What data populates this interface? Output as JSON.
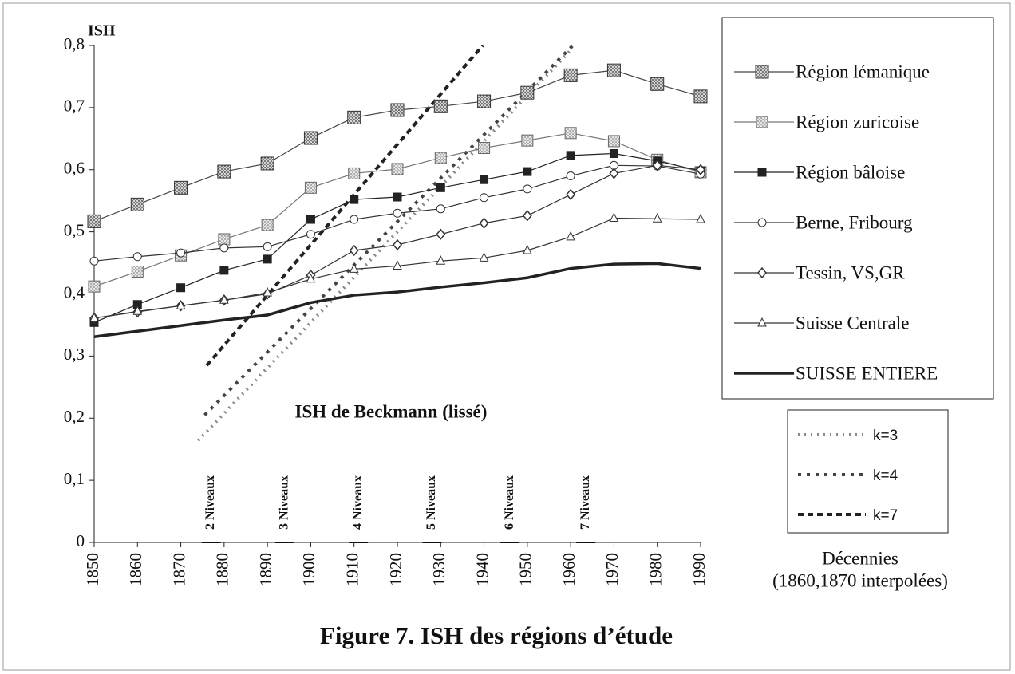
{
  "chart_data": {
    "type": "line",
    "title": "Figure 7. ISH des régions d’étude",
    "y_label": "ISH",
    "annotation": "ISH de Beckmann (lissé)",
    "x_label": [
      "Décennies",
      "(1860,1870 interpolées)"
    ],
    "x": [
      1850,
      1860,
      1870,
      1880,
      1890,
      1900,
      1910,
      1920,
      1930,
      1940,
      1950,
      1960,
      1970,
      1980,
      1990
    ],
    "xlim": [
      1850,
      1990
    ],
    "xticks": [
      1850,
      1860,
      1870,
      1880,
      1890,
      1900,
      1910,
      1920,
      1930,
      1940,
      1950,
      1960,
      1970,
      1980,
      1990
    ],
    "ylim": [
      0,
      0.8
    ],
    "yticks": [
      0,
      {
        "value": 0.1,
        "label": "0,1"
      },
      {
        "value": 0.2,
        "label": "0,2"
      },
      {
        "value": 0.3,
        "label": "0,3"
      },
      {
        "value": 0.4,
        "label": "0,4"
      },
      {
        "value": 0.5,
        "label": "0,5"
      },
      {
        "value": 0.6,
        "label": "0,6"
      },
      {
        "value": 0.7,
        "label": "0,7"
      },
      {
        "value": 0.8,
        "label": "0,8"
      }
    ],
    "series": [
      {
        "name": "Région lémanique",
        "color": "#444444",
        "marker": "hatched-square-dark",
        "values": [
          0.517,
          0.544,
          0.571,
          0.597,
          0.61,
          0.651,
          0.684,
          0.696,
          0.702,
          0.71,
          0.724,
          0.752,
          0.76,
          0.738,
          0.718
        ]
      },
      {
        "name": "Région zuricoise",
        "color": "#777777",
        "marker": "hatched-square-light",
        "values": [
          0.412,
          0.436,
          0.462,
          0.488,
          0.511,
          0.571,
          0.594,
          0.601,
          0.619,
          0.635,
          0.647,
          0.659,
          0.646,
          0.616,
          0.596
        ]
      },
      {
        "name": "Région bâloise",
        "color": "#222222",
        "marker": "square",
        "values": [
          0.354,
          0.383,
          0.41,
          0.438,
          0.456,
          0.52,
          0.552,
          0.556,
          0.571,
          0.584,
          0.597,
          0.623,
          0.626,
          0.614,
          0.598
        ]
      },
      {
        "name": "Berne, Fribourg",
        "color": "#333333",
        "marker": "circle",
        "values": [
          0.453,
          0.46,
          0.466,
          0.474,
          0.476,
          0.496,
          0.52,
          0.53,
          0.537,
          0.555,
          0.569,
          0.59,
          0.607,
          0.606,
          0.593
        ]
      },
      {
        "name": "Tessin, VS,GR",
        "color": "#333333",
        "marker": "diamond",
        "values": [
          0.361,
          0.371,
          0.381,
          0.39,
          0.4,
          0.43,
          0.47,
          0.479,
          0.496,
          0.514,
          0.526,
          0.56,
          0.594,
          0.607,
          0.6
        ]
      },
      {
        "name": "Suisse Centrale",
        "color": "#333333",
        "marker": "triangle",
        "values": [
          0.361,
          0.372,
          0.381,
          0.39,
          0.402,
          0.424,
          0.44,
          0.445,
          0.453,
          0.458,
          0.47,
          0.492,
          0.522,
          0.521,
          0.52
        ]
      },
      {
        "name": "SUISSE ENTIERE",
        "color": "#222222",
        "marker": "none",
        "values": [
          0.331,
          0.34,
          0.349,
          0.358,
          0.366,
          0.386,
          0.398,
          0.403,
          0.411,
          0.418,
          0.426,
          0.441,
          0.448,
          0.449,
          0.441
        ]
      }
    ],
    "reference_lines": [
      {
        "name": "k=3",
        "color": "#888888",
        "dash": "2 6",
        "x": [
          1874,
          1960.5
        ],
        "values": [
          0.164,
          0.796
        ]
      },
      {
        "name": "k=4",
        "color": "#444444",
        "dash": "4 7",
        "x": [
          1875.5,
          1960.5
        ],
        "values": [
          0.205,
          0.8
        ]
      },
      {
        "name": "k=7",
        "color": "#222222",
        "dash": "7 5",
        "x": [
          1876,
          1939.7
        ],
        "values": [
          0.285,
          0.8
        ]
      }
    ],
    "levels": [
      {
        "text": "2 Niveaux",
        "x": 1877
      },
      {
        "text": "3 Niveaux",
        "x": 1894
      },
      {
        "text": "4 Niveaux",
        "x": 1911
      },
      {
        "text": "5 Niveaux",
        "x": 1928
      },
      {
        "text": "6 Niveaux",
        "x": 1946
      },
      {
        "text": "7 Niveaux",
        "x": 1963.5
      }
    ]
  }
}
